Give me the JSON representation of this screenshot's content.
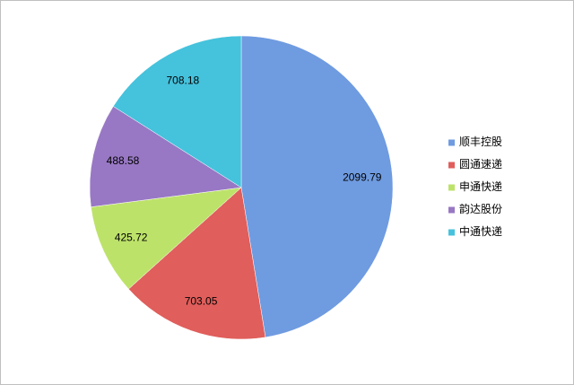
{
  "chart_data": {
    "type": "pie",
    "categories": [
      "顺丰控股",
      "圆通速递",
      "申通快递",
      "韵达股份",
      "中通快递"
    ],
    "values": [
      2099.79,
      703.05,
      425.72,
      488.58,
      708.18
    ],
    "colors": [
      "#6f9be0",
      "#e05e5b",
      "#bde26a",
      "#9878c4",
      "#45c2dc"
    ],
    "legend": "right"
  }
}
